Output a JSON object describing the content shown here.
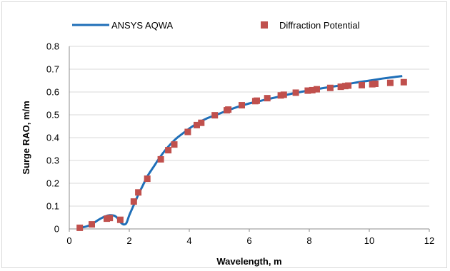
{
  "chart_data": {
    "type": "scatter",
    "title": "",
    "xlabel": "Wavelength, m",
    "ylabel": "Surge RAO, m/m",
    "xlim": [
      0,
      12
    ],
    "ylim": [
      0,
      0.8
    ],
    "x_ticks": [
      "0",
      "2",
      "4",
      "6",
      "8",
      "10",
      "12"
    ],
    "y_ticks": [
      "0",
      "0.1",
      "0.2",
      "0.3",
      "0.4",
      "0.5",
      "0.6",
      "0.7",
      "0.8"
    ],
    "grid": "horizontal",
    "legend_position": "top",
    "series": [
      {
        "name": "ANSYS AQWA",
        "style": "line",
        "color": "#1f6fb8",
        "x": [
          0.35,
          0.6,
          0.8,
          1.0,
          1.2,
          1.35,
          1.5,
          1.6,
          1.7,
          1.8,
          1.9,
          2.0,
          2.1,
          2.2,
          2.3,
          2.45,
          2.6,
          2.8,
          3.0,
          3.2,
          3.4,
          3.6,
          3.8,
          4.0,
          4.3,
          4.6,
          5.0,
          5.5,
          6.0,
          6.5,
          7.0,
          7.5,
          8.0,
          8.5,
          9.0,
          9.5,
          10.0,
          10.5,
          11.1
        ],
        "y": [
          0.005,
          0.012,
          0.025,
          0.042,
          0.055,
          0.06,
          0.058,
          0.048,
          0.03,
          0.02,
          0.025,
          0.06,
          0.09,
          0.12,
          0.15,
          0.19,
          0.23,
          0.27,
          0.31,
          0.345,
          0.375,
          0.4,
          0.42,
          0.44,
          0.465,
          0.485,
          0.505,
          0.53,
          0.55,
          0.565,
          0.58,
          0.595,
          0.607,
          0.618,
          0.628,
          0.64,
          0.65,
          0.66,
          0.67
        ]
      },
      {
        "name": "Diffraction Potential",
        "style": "marker",
        "color": "#c0504d",
        "x": [
          0.35,
          0.75,
          1.25,
          1.35,
          1.7,
          2.15,
          2.3,
          2.6,
          3.05,
          3.3,
          3.5,
          3.95,
          4.25,
          4.4,
          4.85,
          5.25,
          5.3,
          5.75,
          6.2,
          6.25,
          6.6,
          7.05,
          7.15,
          7.55,
          7.95,
          8.1,
          8.25,
          8.7,
          9.05,
          9.2,
          9.3,
          9.75,
          10.1,
          10.2,
          10.7,
          11.15
        ],
        "y": [
          0.005,
          0.02,
          0.045,
          0.048,
          0.04,
          0.12,
          0.16,
          0.22,
          0.305,
          0.345,
          0.37,
          0.425,
          0.455,
          0.465,
          0.498,
          0.52,
          0.523,
          0.542,
          0.56,
          0.562,
          0.573,
          0.585,
          0.588,
          0.597,
          0.606,
          0.608,
          0.612,
          0.618,
          0.623,
          0.626,
          0.628,
          0.63,
          0.634,
          0.636,
          0.64,
          0.643
        ]
      }
    ]
  }
}
